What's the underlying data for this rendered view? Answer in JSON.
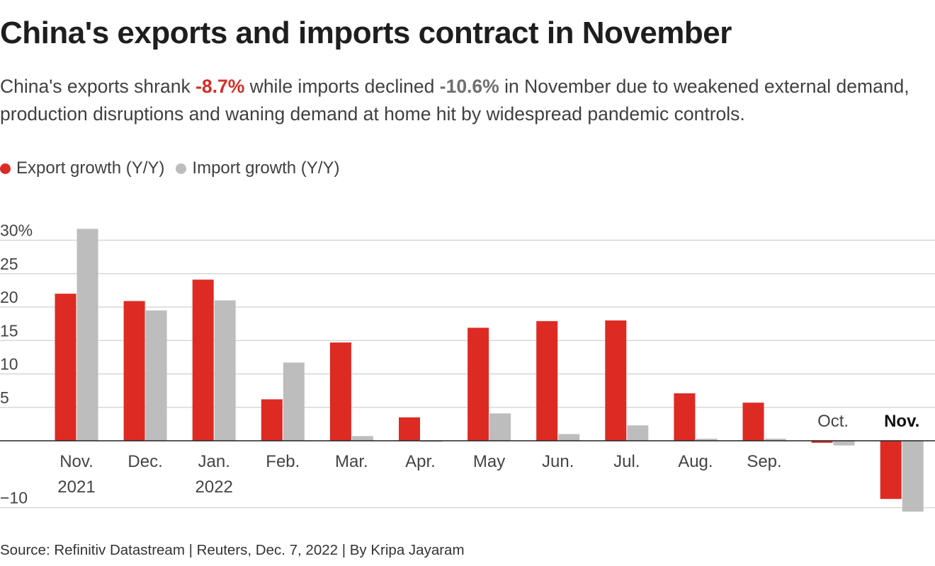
{
  "title": "China's exports and imports contract in November",
  "subtitle": {
    "part1": "China's exports shrank ",
    "export_value": "-8.7%",
    "part2": " while imports declined ",
    "import_value": "-10.6%",
    "part3": " in November due to weakened external demand, production disruptions and waning demand at home hit by widespread pandemic controls."
  },
  "legend": {
    "export_label": "Export growth (Y/Y)",
    "import_label": "Import growth (Y/Y)"
  },
  "colors": {
    "export": "#dd2b24",
    "import": "#bdbdbd",
    "grid": "#d0d0d0",
    "axis": "#222222"
  },
  "source": "Source: Refinitiv Datastream | Reuters, Dec. 7, 2022 | By Kripa Jayaram",
  "chart_data": {
    "type": "bar",
    "title": "China's exports and imports contract in November",
    "xlabel": "",
    "ylabel": "",
    "ylim": [
      -10,
      30
    ],
    "yticks": [
      -10,
      5,
      10,
      15,
      20,
      25,
      30
    ],
    "ytick_labels": [
      "−10",
      "5",
      "10",
      "15",
      "20",
      "25",
      "30%"
    ],
    "categories": [
      {
        "line1": "Nov.",
        "line2": "2021"
      },
      {
        "line1": "Dec.",
        "line2": ""
      },
      {
        "line1": "Jan.",
        "line2": "2022"
      },
      {
        "line1": "Feb.",
        "line2": ""
      },
      {
        "line1": "Mar.",
        "line2": ""
      },
      {
        "line1": "Apr.",
        "line2": ""
      },
      {
        "line1": "May",
        "line2": ""
      },
      {
        "line1": "Jun.",
        "line2": ""
      },
      {
        "line1": "Jul.",
        "line2": ""
      },
      {
        "line1": "Aug.",
        "line2": ""
      },
      {
        "line1": "Sep.",
        "line2": ""
      },
      {
        "line1": "Oct.",
        "line2": ""
      },
      {
        "line1": "Nov.",
        "line2": ""
      }
    ],
    "series": [
      {
        "name": "Export growth (Y/Y)",
        "values": [
          22.0,
          20.9,
          24.1,
          6.2,
          14.7,
          3.5,
          16.9,
          17.9,
          18.0,
          7.1,
          5.7,
          -0.3,
          -8.7
        ]
      },
      {
        "name": "Import growth (Y/Y)",
        "values": [
          31.7,
          19.5,
          21.0,
          11.7,
          0.7,
          0.0,
          4.1,
          1.0,
          2.3,
          0.3,
          0.3,
          -0.7,
          -10.6
        ]
      }
    ]
  }
}
